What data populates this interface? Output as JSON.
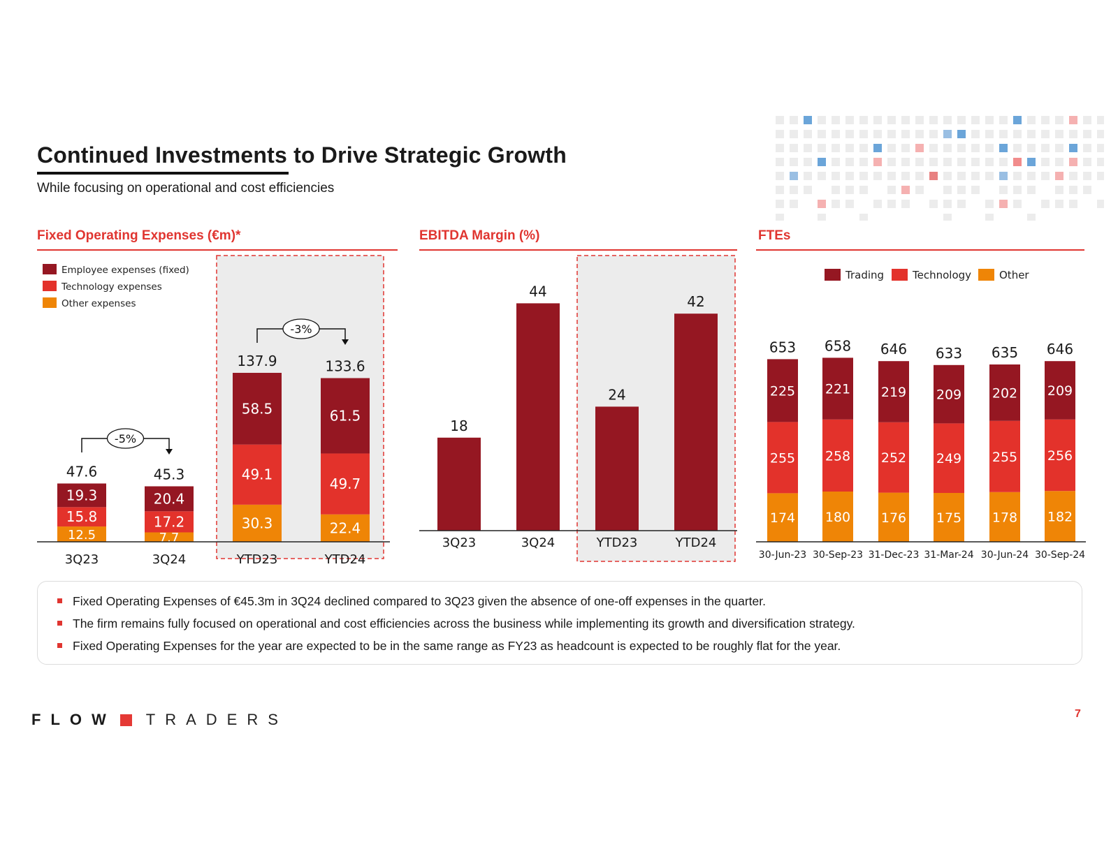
{
  "header": {
    "title": "Continued Investments to Drive Strategic Growth",
    "subtitle": "While focusing on operational and cost efficiencies"
  },
  "colors": {
    "accent": "#e03530",
    "dark_red": "#951722",
    "red": "#e3322b",
    "orange": "#ef8506",
    "highlight_bg": "#ececec"
  },
  "chart_data": [
    {
      "type": "bar",
      "stacked": true,
      "title": "Fixed Operating Expenses (€m)*",
      "categories": [
        "3Q23",
        "3Q24",
        "YTD23",
        "YTD24"
      ],
      "series": [
        {
          "name": "Other expenses",
          "color": "#ef8506",
          "values": [
            12.5,
            7.7,
            30.3,
            22.4
          ]
        },
        {
          "name": "Technology expenses",
          "color": "#e3322b",
          "values": [
            15.8,
            17.2,
            49.1,
            49.7
          ]
        },
        {
          "name": "Employee expenses (fixed)",
          "color": "#951722",
          "values": [
            19.3,
            20.4,
            58.5,
            61.5
          ]
        }
      ],
      "totals": [
        "47.6",
        "45.3",
        "137.9",
        "133.6"
      ],
      "labels": [
        [
          "12.5",
          "15.8",
          "19.3"
        ],
        [
          "7.7",
          "17.2",
          "20.4"
        ],
        [
          "30.3",
          "49.1",
          "58.5"
        ],
        [
          "22.4",
          "49.7",
          "61.5"
        ]
      ],
      "legend": [
        "Employee expenses (fixed)",
        "Technology expenses",
        "Other expenses"
      ],
      "legend_position": "top-left",
      "annotations": [
        {
          "from": "3Q23",
          "to": "3Q24",
          "text": "-5%"
        },
        {
          "from": "YTD23",
          "to": "YTD24",
          "text": "-3%"
        }
      ],
      "highlighted_categories": [
        "YTD23",
        "YTD24"
      ],
      "ylim": [
        0,
        150
      ]
    },
    {
      "type": "bar",
      "title": "EBITDA Margin (%)",
      "categories": [
        "3Q23",
        "3Q24",
        "YTD23",
        "YTD24"
      ],
      "values": [
        18,
        44,
        24,
        42
      ],
      "labels": [
        "18",
        "44",
        "24",
        "42"
      ],
      "color": "#951722",
      "highlighted_categories": [
        "YTD23",
        "YTD24"
      ],
      "ylim": [
        0,
        52
      ]
    },
    {
      "type": "bar",
      "stacked": true,
      "title": "FTEs",
      "categories": [
        "30-Jun-23",
        "30-Sep-23",
        "31-Dec-23",
        "31-Mar-24",
        "30-Jun-24",
        "30-Sep-24"
      ],
      "series": [
        {
          "name": "Other",
          "color": "#ef8506",
          "values": [
            174,
            180,
            176,
            175,
            178,
            182
          ]
        },
        {
          "name": "Technology",
          "color": "#e3322b",
          "values": [
            255,
            258,
            252,
            249,
            255,
            256
          ]
        },
        {
          "name": "Trading",
          "color": "#951722",
          "values": [
            225,
            221,
            219,
            209,
            202,
            209
          ]
        }
      ],
      "totals": [
        "653",
        "658",
        "646",
        "633",
        "635",
        "646"
      ],
      "legend": [
        "Trading",
        "Technology",
        "Other"
      ],
      "legend_position": "top",
      "ylim": [
        0,
        800
      ]
    }
  ],
  "bullets": [
    "Fixed Operating Expenses of €45.3m in 3Q24 declined compared to 3Q23 given the absence of one-off expenses in the quarter.",
    "The firm remains fully focused on operational and cost efficiencies across the business while implementing its growth and diversification strategy.",
    "Fixed Operating Expenses for the year are expected to be in the same range as FY23 as headcount is expected to be roughly flat for the year."
  ],
  "footer": {
    "logo_text": "FLOW TRADERS",
    "logo_flow": "FLOW",
    "logo_traders": "TRADERS",
    "page_number": "7"
  }
}
